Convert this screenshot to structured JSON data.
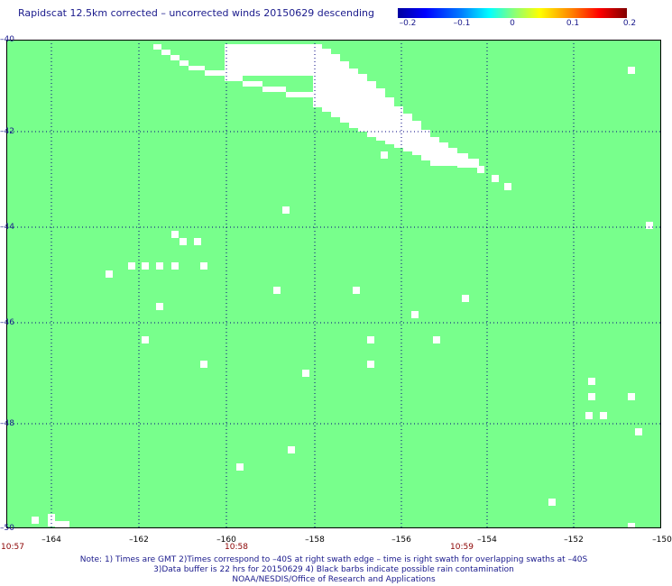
{
  "title": "Rapidscat 12.5km corrected – uncorrected winds 20150629 descending",
  "colorbar": {
    "ticks": [
      "–0.2",
      "–0.1",
      "0",
      "0.1",
      "0.2"
    ],
    "colors": [
      "#0000a0",
      "#0000ff",
      "#00ffff",
      "#80ff80",
      "#ffff00",
      "#ff0000",
      "#800000"
    ]
  },
  "map": {
    "lat_labels": [
      "–40",
      "–42",
      "–44",
      "–46",
      "–48",
      "–50"
    ],
    "lon_labels": [
      "–164",
      "–162",
      "–160",
      "–158",
      "–156",
      "–154",
      "–152",
      "–150"
    ],
    "lon_range": [
      -165,
      -150
    ],
    "lat_range": [
      -50,
      -40
    ],
    "field_color": "#78ff8c",
    "missing_color": "#ffffff",
    "grid_color": "#000080"
  },
  "time_labels": [
    "10:57",
    "10:58",
    "10:59"
  ],
  "notes": [
    "Note: 1) Times are GMT 2)Times correspond to –40S at right swath edge – time is right swath for overlapping swaths at –40S",
    "3)Data buffer is 22 hrs for 20150629 4) Black barbs indicate possible rain contamination",
    "NOAA/NESDIS/Office of Research and Applications"
  ]
}
